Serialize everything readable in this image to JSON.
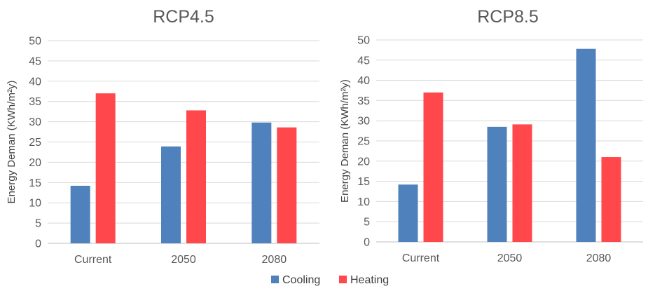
{
  "chart_data": [
    {
      "type": "bar",
      "title": "RCP4.5",
      "ylabel": "Energy Deman (KWh/m²y)",
      "xlabel": "",
      "categories": [
        "Current",
        "2050",
        "2080"
      ],
      "ylim": [
        0,
        50
      ],
      "yticks": [
        0,
        5,
        10,
        15,
        20,
        25,
        30,
        35,
        40,
        45,
        50
      ],
      "grid": true,
      "series": [
        {
          "name": "Cooling",
          "values": [
            14.2,
            23.9,
            29.8
          ]
        },
        {
          "name": "Heating",
          "values": [
            37.0,
            32.8,
            28.6
          ]
        }
      ]
    },
    {
      "type": "bar",
      "title": "RCP8.5",
      "ylabel": "Energy Deman (KWh/m²y)",
      "xlabel": "",
      "categories": [
        "Current",
        "2050",
        "2080"
      ],
      "ylim": [
        0,
        50
      ],
      "yticks": [
        0,
        5,
        10,
        15,
        20,
        25,
        30,
        35,
        40,
        45,
        50
      ],
      "grid": true,
      "series": [
        {
          "name": "Cooling",
          "values": [
            14.2,
            28.5,
            47.8
          ]
        },
        {
          "name": "Heating",
          "values": [
            37.0,
            29.1,
            21.0
          ]
        }
      ]
    }
  ],
  "legend": {
    "placement": "bottom-center",
    "items": [
      {
        "label": "Cooling",
        "color": "#4f81bd"
      },
      {
        "label": "Heating",
        "color": "#ff474c"
      }
    ]
  },
  "colors": {
    "Cooling": "#4f81bd",
    "Heating": "#ff474c"
  }
}
